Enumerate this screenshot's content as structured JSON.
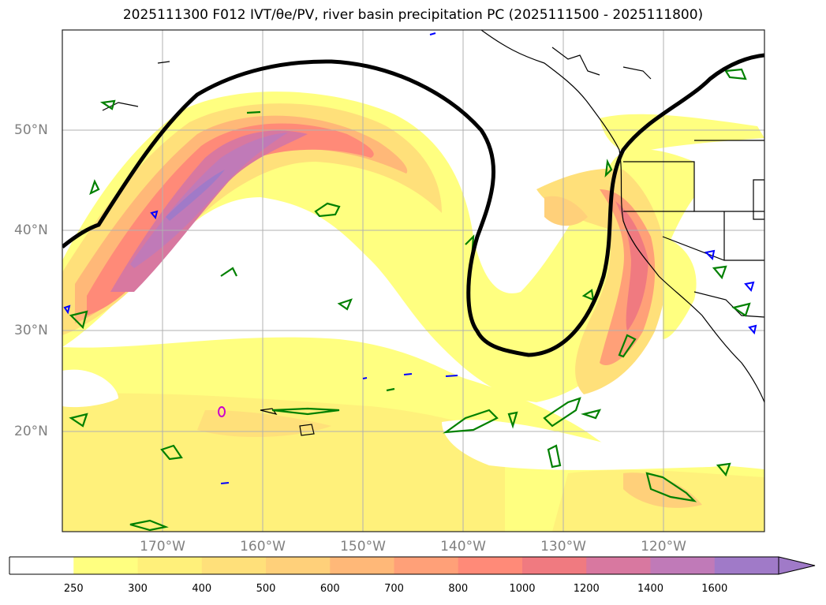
{
  "title": "2025111300 F012 IVT/θe/PV, river basin precipitation PC (2025111500 - 2025111800)",
  "map": {
    "lat_labels": [
      "50°N",
      "40°N",
      "30°N",
      "20°N"
    ],
    "lon_labels": [
      "170°W",
      "160°W",
      "150°W",
      "140°W",
      "130°W",
      "120°W"
    ],
    "colors": {
      "pv_contour": "#000000",
      "theta_e_contour": "#008000",
      "precip_contour": "#0000ff",
      "extra_contour": "#cc00cc",
      "coastline": "#000000",
      "grid": "#b0b0b0",
      "frame": "#222222"
    }
  },
  "colorbar": {
    "tick_labels": [
      "250",
      "300",
      "400",
      "500",
      "600",
      "700",
      "800",
      "1000",
      "1200",
      "1400",
      "1600"
    ],
    "colors": [
      "#ffffff",
      "#ffff80",
      "#fff07a",
      "#ffe07a",
      "#ffd07a",
      "#ffb878",
      "#ffa078",
      "#ff8a78",
      "#f07a80",
      "#d878a0",
      "#c07ab8",
      "#a07ac8"
    ]
  }
}
